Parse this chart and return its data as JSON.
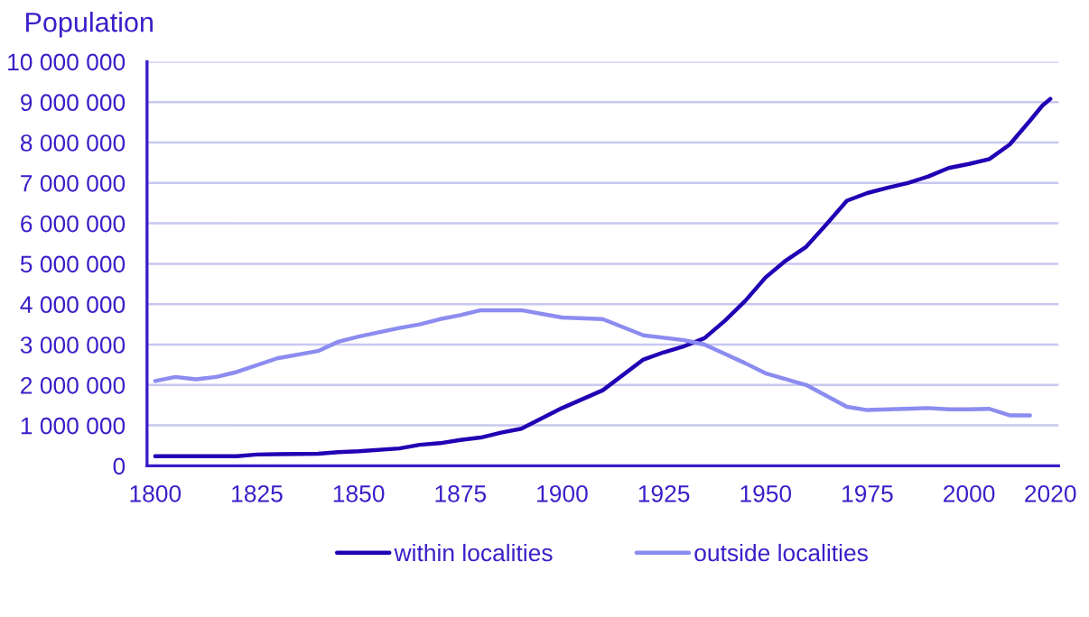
{
  "chart_data": {
    "type": "line",
    "ylabel": "Population",
    "xlim": [
      1798,
      2022
    ],
    "xticks": [
      1800,
      1825,
      1850,
      1875,
      1900,
      1925,
      1950,
      1975,
      2000,
      2020
    ],
    "ylim": [
      0,
      10000000
    ],
    "yticks": [
      {
        "value": 0,
        "label": "0"
      },
      {
        "value": 1000000,
        "label": "1 000 000"
      },
      {
        "value": 2000000,
        "label": "2 000 000"
      },
      {
        "value": 3000000,
        "label": "3 000 000"
      },
      {
        "value": 4000000,
        "label": "4 000 000"
      },
      {
        "value": 5000000,
        "label": "5 000 000"
      },
      {
        "value": 6000000,
        "label": "6 000 000"
      },
      {
        "value": 7000000,
        "label": "7 000 000"
      },
      {
        "value": 8000000,
        "label": "8 000 000"
      },
      {
        "value": 9000000,
        "label": "9 000 000"
      },
      {
        "value": 10000000,
        "label": "10 000 000"
      }
    ],
    "grid": "y",
    "legend": "bottom",
    "marker": "none",
    "line_style": "solid",
    "series": [
      {
        "name": "within localities",
        "color": "#2200b4",
        "x": [
          1800,
          1810,
          1820,
          1825,
          1830,
          1840,
          1845,
          1850,
          1860,
          1865,
          1870,
          1875,
          1880,
          1885,
          1890,
          1900,
          1910,
          1920,
          1925,
          1930,
          1935,
          1940,
          1945,
          1950,
          1955,
          1960,
          1965,
          1970,
          1975,
          1980,
          1985,
          1990,
          1995,
          2000,
          2005,
          2010,
          2015,
          2018,
          2020
        ],
        "values": [
          240000,
          240000,
          240000,
          280000,
          290000,
          300000,
          340000,
          360000,
          430000,
          520000,
          560000,
          640000,
          700000,
          820000,
          920000,
          1430000,
          1870000,
          2630000,
          2810000,
          2960000,
          3160000,
          3590000,
          4080000,
          4660000,
          5080000,
          5420000,
          5980000,
          6560000,
          6750000,
          6880000,
          7000000,
          7160000,
          7370000,
          7470000,
          7590000,
          7950000,
          8540000,
          8910000,
          9080000
        ]
      },
      {
        "name": "outside localities",
        "color": "#8c8cf0",
        "x": [
          1800,
          1805,
          1810,
          1815,
          1820,
          1830,
          1840,
          1845,
          1850,
          1860,
          1865,
          1870,
          1875,
          1880,
          1890,
          1900,
          1910,
          1920,
          1930,
          1935,
          1940,
          1945,
          1950,
          1960,
          1970,
          1975,
          1990,
          1995,
          2000,
          2005,
          2010,
          2015
        ],
        "values": [
          2100000,
          2200000,
          2140000,
          2200000,
          2320000,
          2660000,
          2840000,
          3070000,
          3200000,
          3410000,
          3500000,
          3630000,
          3730000,
          3850000,
          3850000,
          3670000,
          3630000,
          3230000,
          3110000,
          3000000,
          2770000,
          2540000,
          2290000,
          2000000,
          1460000,
          1380000,
          1430000,
          1400000,
          1400000,
          1410000,
          1250000,
          1250000
        ]
      }
    ]
  }
}
